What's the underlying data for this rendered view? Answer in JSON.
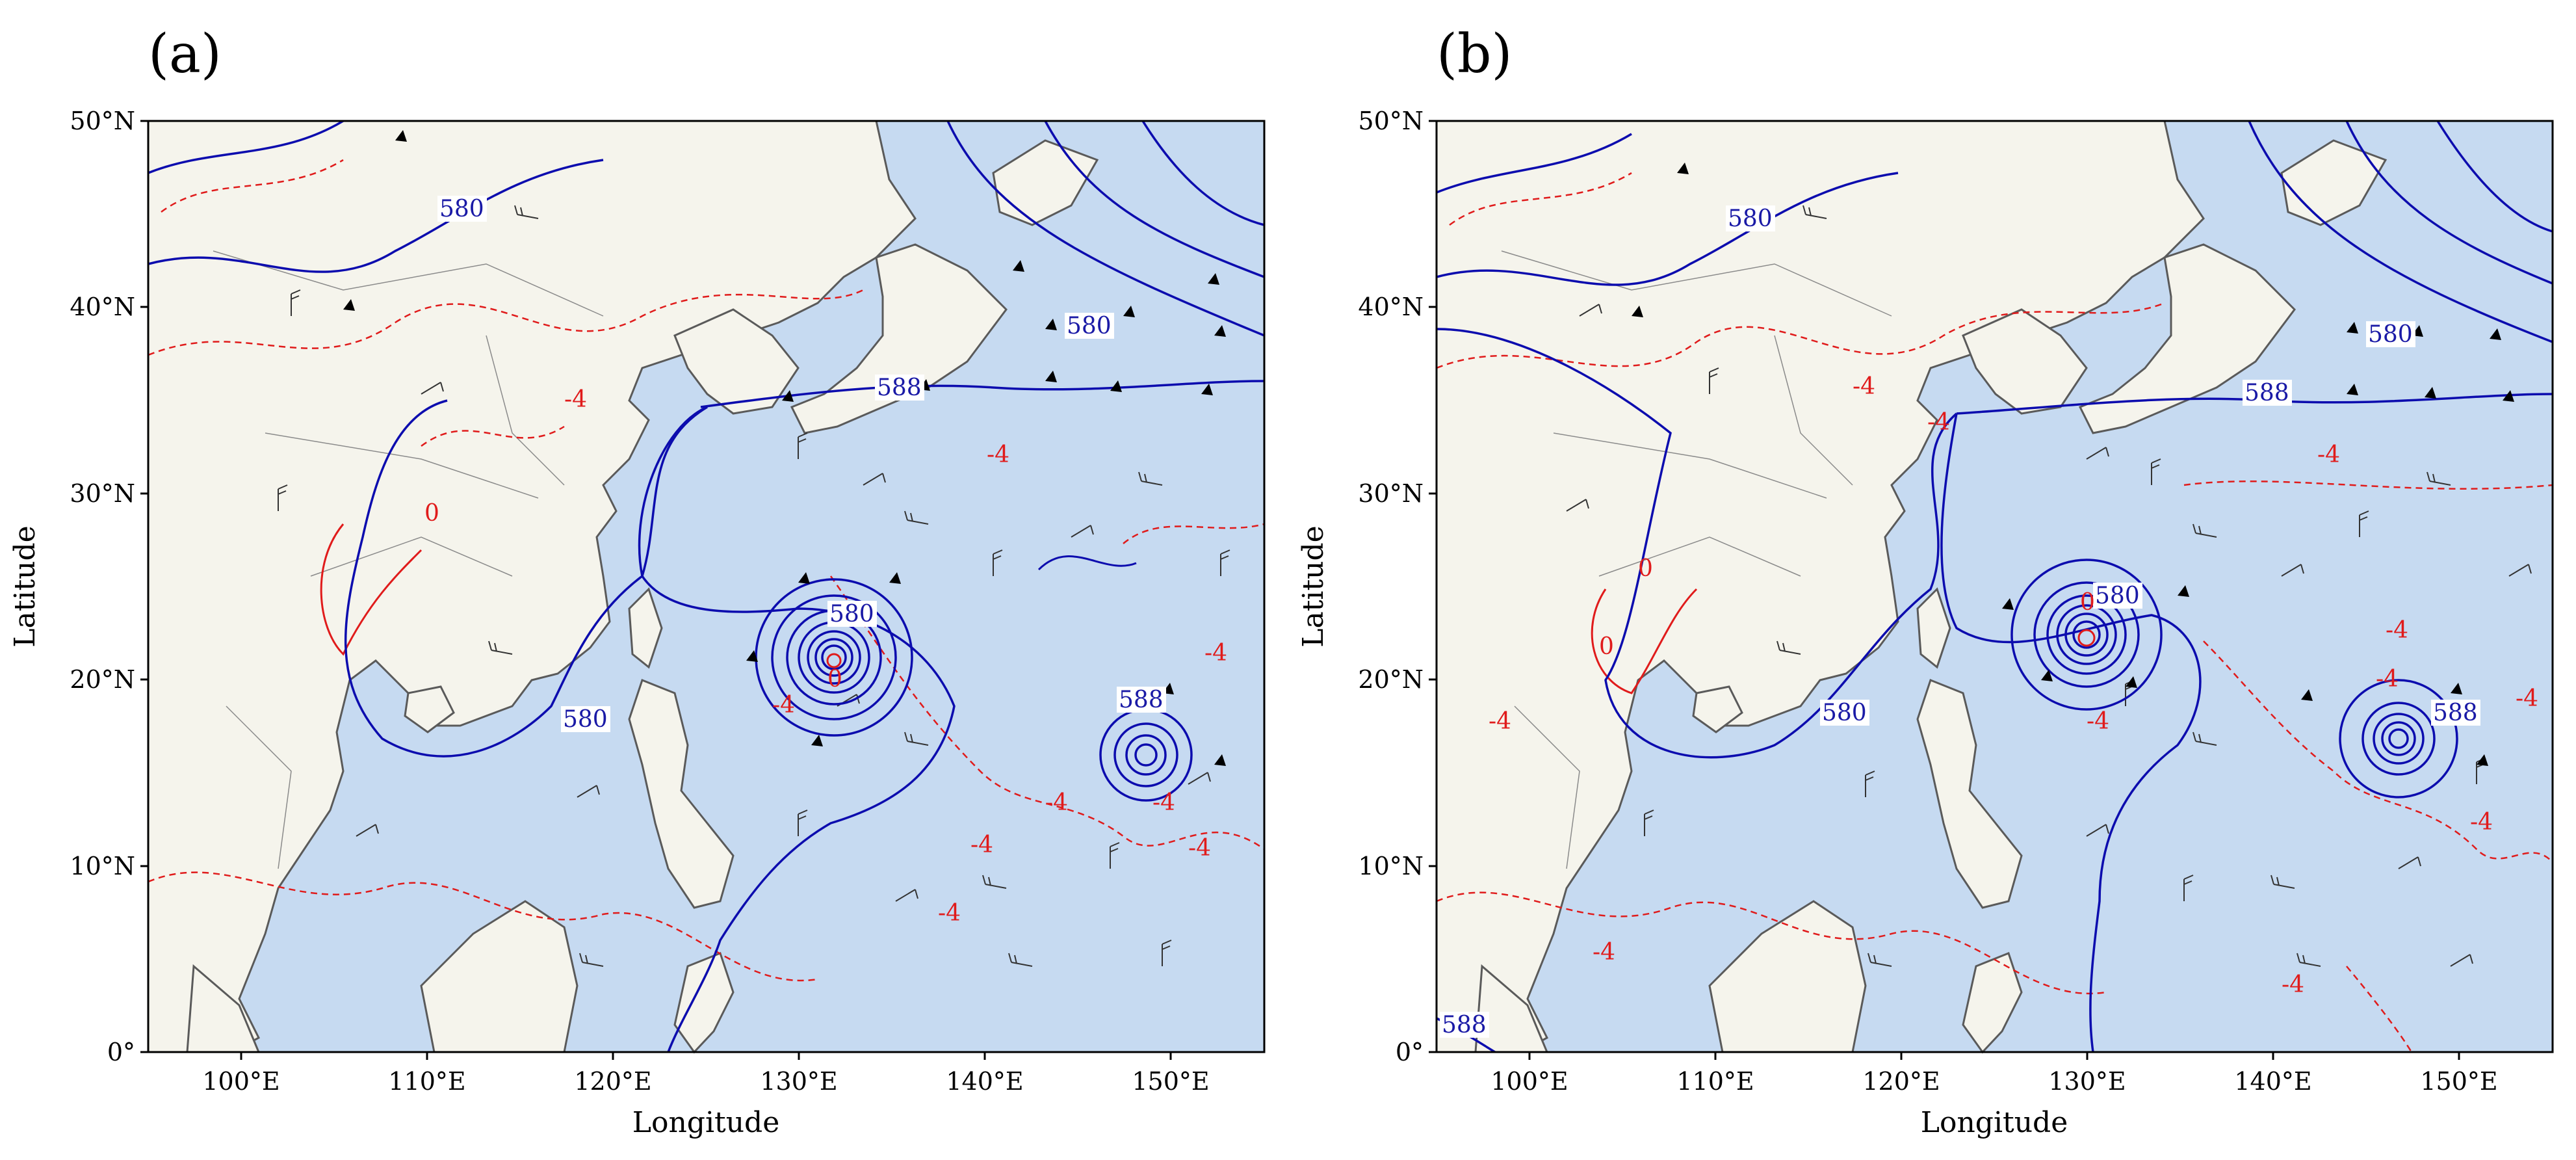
{
  "panels": [
    {
      "label": "(a)",
      "x_axis_label": "Longitude",
      "y_axis_label": "Latitude",
      "x_ticks": [
        "100°E",
        "110°E",
        "120°E",
        "130°E",
        "140°E",
        "150°E"
      ],
      "y_ticks": [
        "0°",
        "10°N",
        "20°N",
        "30°N",
        "40°N",
        "50°N"
      ],
      "contour_labels_blue": [
        "580",
        "580",
        "588",
        "580",
        "580",
        "588"
      ],
      "contour_labels_red": [
        "-4",
        "0",
        "-4",
        "-4",
        "-4",
        "-4",
        "-4",
        "-4",
        "-4",
        "-4",
        "0"
      ]
    },
    {
      "label": "(b)",
      "x_axis_label": "Longitude",
      "y_axis_label": "Latitude",
      "x_ticks": [
        "100°E",
        "110°E",
        "120°E",
        "130°E",
        "140°E",
        "150°E"
      ],
      "y_ticks": [
        "0°",
        "10°N",
        "20°N",
        "30°N",
        "40°N",
        "50°N"
      ],
      "contour_labels_blue": [
        "580",
        "580",
        "588",
        "580",
        "580",
        "588",
        "588"
      ],
      "contour_labels_red": [
        "-4",
        "-4",
        "-4",
        "0",
        "0",
        "-4",
        "-4",
        "-4",
        "-4",
        "-4",
        "-4",
        "-4",
        "-4",
        "0"
      ]
    }
  ],
  "colors": {
    "ocean": "#c6daf1",
    "land": "#f5f4ec",
    "coast": "#5a5a5a",
    "contour_blue": "#0c0cae",
    "contour_red": "#e01b1b",
    "wind_barb": "#333333"
  }
}
